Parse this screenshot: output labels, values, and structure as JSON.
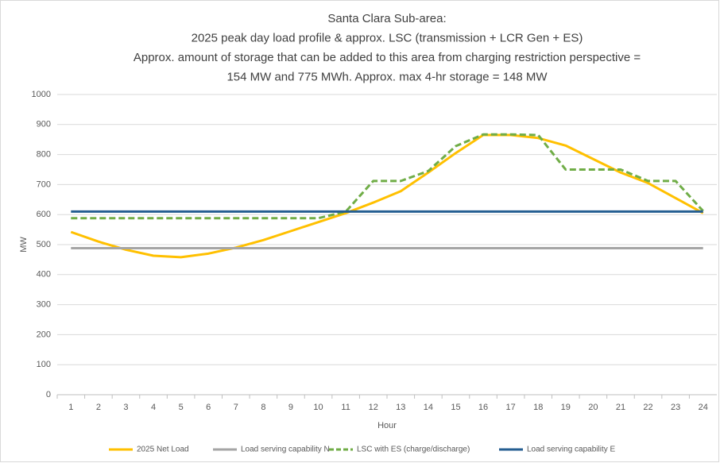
{
  "chart_data": {
    "type": "line",
    "title": [
      "Santa Clara Sub-area:",
      "2025 peak day load profile & approx. LSC (transmission + LCR Gen + ES)",
      "Approx. amount of storage that can be added to this area from charging restriction perspective =",
      "154 MW and 775 MWh. Approx. max 4-hr storage = 148 MW"
    ],
    "xlabel": "Hour",
    "ylabel": "MW",
    "categories": [
      1,
      2,
      3,
      4,
      5,
      6,
      7,
      8,
      9,
      10,
      11,
      12,
      13,
      14,
      15,
      16,
      17,
      18,
      19,
      20,
      21,
      22,
      23,
      24
    ],
    "ylim": [
      0,
      1000
    ],
    "yticks": [
      0,
      100,
      200,
      300,
      400,
      500,
      600,
      700,
      800,
      900,
      1000
    ],
    "grid": true,
    "series": [
      {
        "name": "2025 Net Load",
        "color": "#ffc000",
        "dashed": false,
        "values": [
          542,
          510,
          483,
          463,
          458,
          470,
          490,
          515,
          545,
          575,
          605,
          640,
          678,
          740,
          805,
          865,
          865,
          855,
          830,
          785,
          740,
          705,
          655,
          605
        ]
      },
      {
        "name": "Load serving capability N",
        "color": "#a5a5a5",
        "dashed": false,
        "values": [
          488,
          488,
          488,
          488,
          488,
          488,
          488,
          488,
          488,
          488,
          488,
          488,
          488,
          488,
          488,
          488,
          488,
          488,
          488,
          488,
          488,
          488,
          488,
          488
        ]
      },
      {
        "name": "LSC with ES (charge/discharge)",
        "color": "#70ad47",
        "dashed": true,
        "values": [
          588,
          588,
          588,
          588,
          588,
          588,
          588,
          588,
          588,
          588,
          610,
          712,
          712,
          745,
          828,
          867,
          867,
          865,
          750,
          750,
          750,
          712,
          712,
          612
        ]
      },
      {
        "name": "Load serving capability E",
        "color": "#255e91",
        "dashed": false,
        "values": [
          610,
          610,
          610,
          610,
          610,
          610,
          610,
          610,
          610,
          610,
          610,
          610,
          610,
          610,
          610,
          610,
          610,
          610,
          610,
          610,
          610,
          610,
          610,
          610
        ]
      }
    ]
  }
}
